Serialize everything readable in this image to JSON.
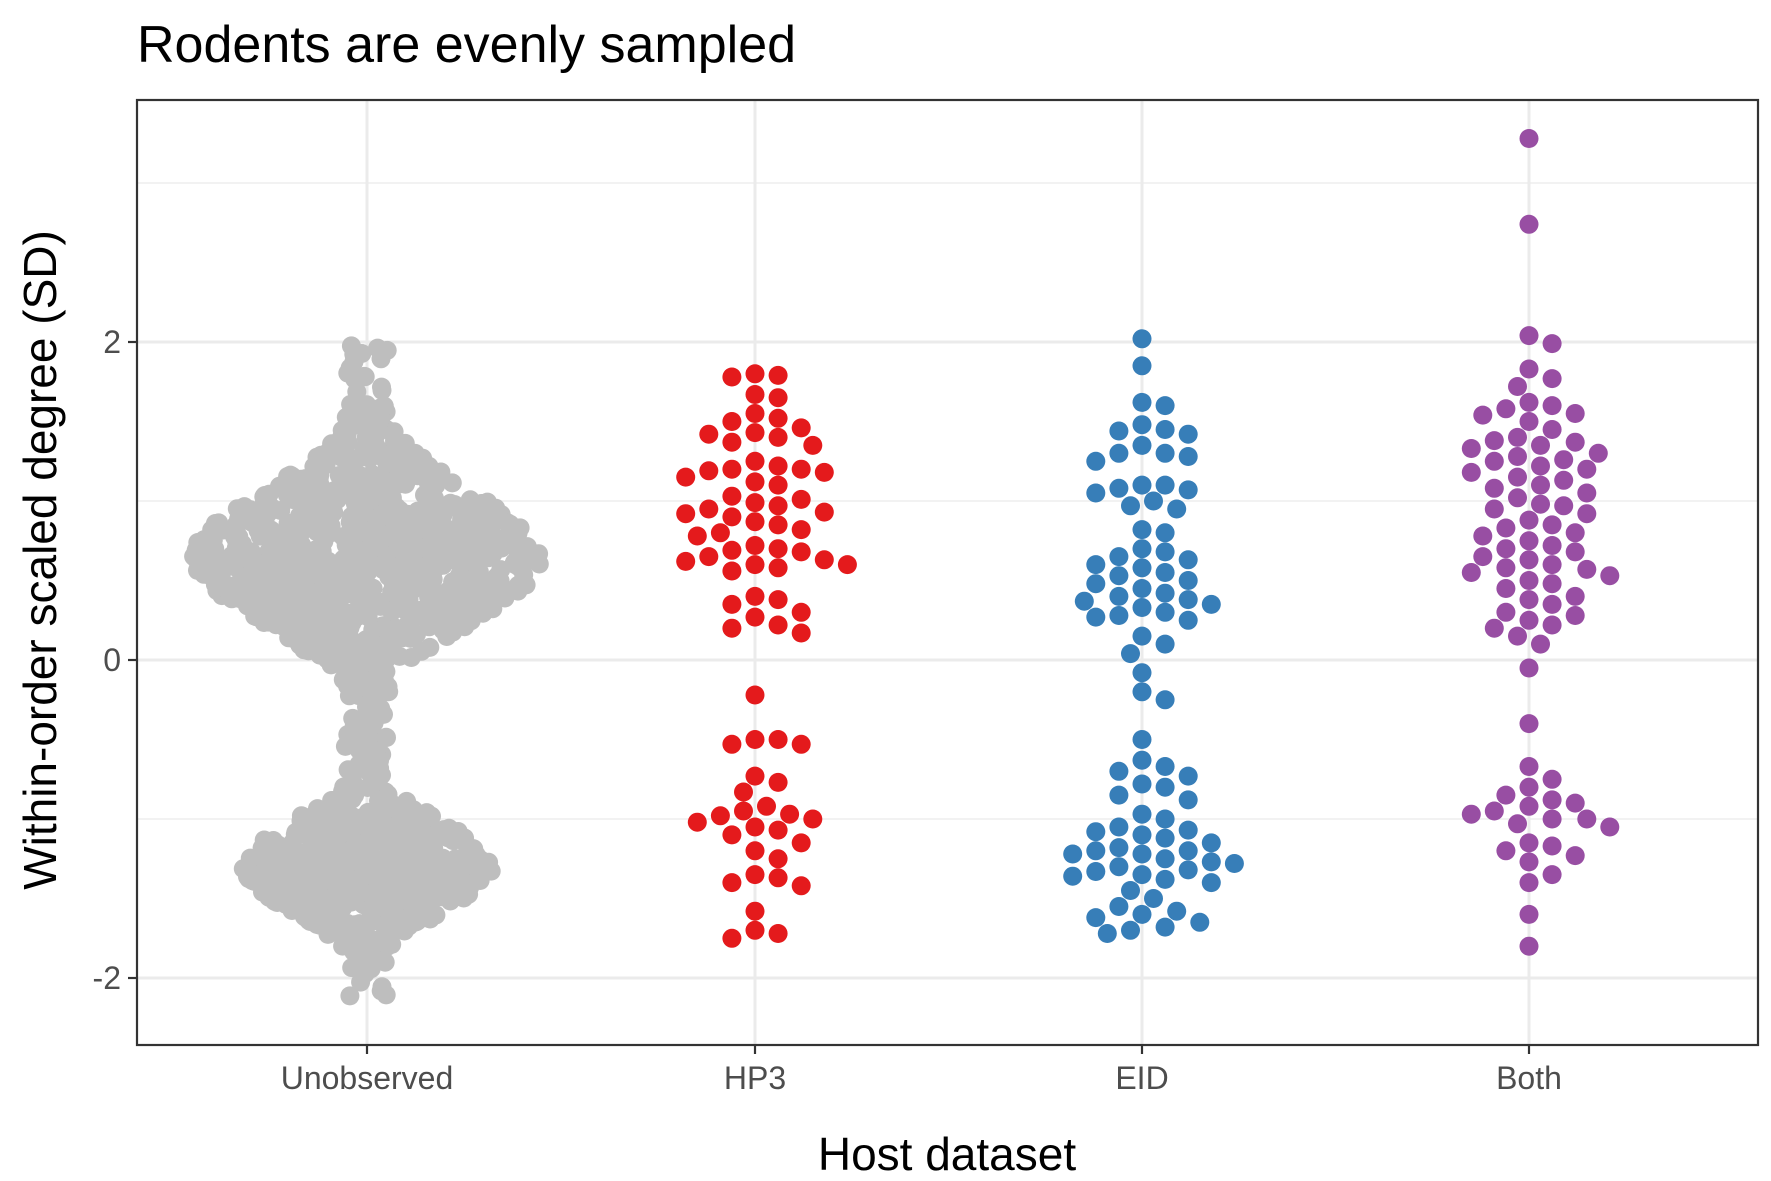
{
  "chart_data": {
    "type": "scatter",
    "subtype": "beeswarm",
    "title": "Rodents are evenly sampled",
    "xlabel": "Host dataset",
    "ylabel": "Within-order scaled degree (SD)",
    "categories": [
      "Unobserved",
      "HP3",
      "EID",
      "Both"
    ],
    "ylim": [
      -2.4,
      3.4
    ],
    "y_ticks": [
      -2,
      0,
      2
    ],
    "y_tick_labels": [
      "-2",
      "0",
      "2"
    ],
    "grid": true,
    "legend": "none",
    "colors": {
      "Unobserved": "#bebebe",
      "HP3": "#e41a1c",
      "EID": "#377eb8",
      "Both": "#984ea3"
    },
    "series": [
      {
        "category": "HP3",
        "values": [
          1.79,
          1.78,
          1.8,
          1.67,
          1.65,
          1.55,
          1.5,
          1.52,
          1.46,
          1.42,
          1.4,
          1.43,
          1.37,
          1.35,
          1.25,
          1.22,
          1.2,
          1.18,
          1.2,
          1.19,
          1.15,
          1.12,
          1.1,
          1.03,
          1.01,
          0.99,
          0.97,
          0.95,
          0.93,
          0.92,
          0.9,
          0.87,
          0.85,
          0.82,
          0.8,
          0.78,
          0.72,
          0.7,
          0.69,
          0.68,
          0.65,
          0.63,
          0.62,
          0.6,
          0.6,
          0.58,
          0.56,
          0.4,
          0.38,
          0.35,
          0.3,
          0.27,
          0.22,
          0.2,
          0.17,
          -0.22,
          -0.5,
          -0.5,
          -0.53,
          -0.53,
          -0.73,
          -0.77,
          -0.83,
          -0.92,
          -0.95,
          -0.97,
          -0.98,
          -1.0,
          -1.02,
          -1.05,
          -1.07,
          -1.1,
          -1.15,
          -1.2,
          -1.25,
          -1.35,
          -1.37,
          -1.4,
          -1.42,
          -1.58,
          -1.7,
          -1.72,
          -1.75
        ]
      },
      {
        "category": "EID",
        "values": [
          2.02,
          1.85,
          1.62,
          1.6,
          1.48,
          1.45,
          1.44,
          1.42,
          1.35,
          1.3,
          1.3,
          1.28,
          1.25,
          1.1,
          1.1,
          1.08,
          1.07,
          1.05,
          1.0,
          0.97,
          0.95,
          0.82,
          0.8,
          0.7,
          0.68,
          0.65,
          0.63,
          0.6,
          0.58,
          0.55,
          0.53,
          0.5,
          0.48,
          0.45,
          0.42,
          0.4,
          0.38,
          0.37,
          0.35,
          0.33,
          0.3,
          0.28,
          0.27,
          0.25,
          0.15,
          0.1,
          0.04,
          -0.08,
          -0.2,
          -0.25,
          -0.5,
          -0.63,
          -0.67,
          -0.7,
          -0.73,
          -0.78,
          -0.8,
          -0.85,
          -0.88,
          -0.97,
          -1.0,
          -1.05,
          -1.07,
          -1.08,
          -1.1,
          -1.12,
          -1.15,
          -1.18,
          -1.2,
          -1.2,
          -1.22,
          -1.22,
          -1.25,
          -1.27,
          -1.28,
          -1.3,
          -1.32,
          -1.33,
          -1.35,
          -1.36,
          -1.38,
          -1.4,
          -1.45,
          -1.5,
          -1.55,
          -1.58,
          -1.6,
          -1.62,
          -1.65,
          -1.68,
          -1.7,
          -1.72
        ]
      },
      {
        "category": "Both",
        "values": [
          3.28,
          2.74,
          2.04,
          1.99,
          1.83,
          1.77,
          1.72,
          1.62,
          1.6,
          1.58,
          1.55,
          1.54,
          1.5,
          1.45,
          1.4,
          1.38,
          1.37,
          1.35,
          1.33,
          1.3,
          1.28,
          1.26,
          1.25,
          1.22,
          1.2,
          1.18,
          1.15,
          1.13,
          1.1,
          1.08,
          1.05,
          1.02,
          0.98,
          0.97,
          0.95,
          0.92,
          0.88,
          0.85,
          0.83,
          0.8,
          0.78,
          0.75,
          0.72,
          0.7,
          0.68,
          0.65,
          0.63,
          0.6,
          0.58,
          0.57,
          0.55,
          0.53,
          0.5,
          0.48,
          0.45,
          0.4,
          0.38,
          0.35,
          0.3,
          0.28,
          0.25,
          0.22,
          0.2,
          0.15,
          0.1,
          -0.05,
          -0.4,
          -0.67,
          -0.75,
          -0.8,
          -0.85,
          -0.88,
          -0.9,
          -0.92,
          -0.95,
          -0.97,
          -1.0,
          -1.0,
          -1.03,
          -1.05,
          -1.15,
          -1.17,
          -1.2,
          -1.23,
          -1.27,
          -1.35,
          -1.4,
          -1.6,
          -1.8
        ]
      }
    ],
    "unobserved_distribution": {
      "category": "Unobserved",
      "range": [
        -2.15,
        2.0
      ],
      "modes": [
        {
          "center": 0.65,
          "spread": 0.45,
          "weight": 0.62
        },
        {
          "center": -1.3,
          "spread": 0.3,
          "weight": 0.38
        }
      ]
    }
  }
}
